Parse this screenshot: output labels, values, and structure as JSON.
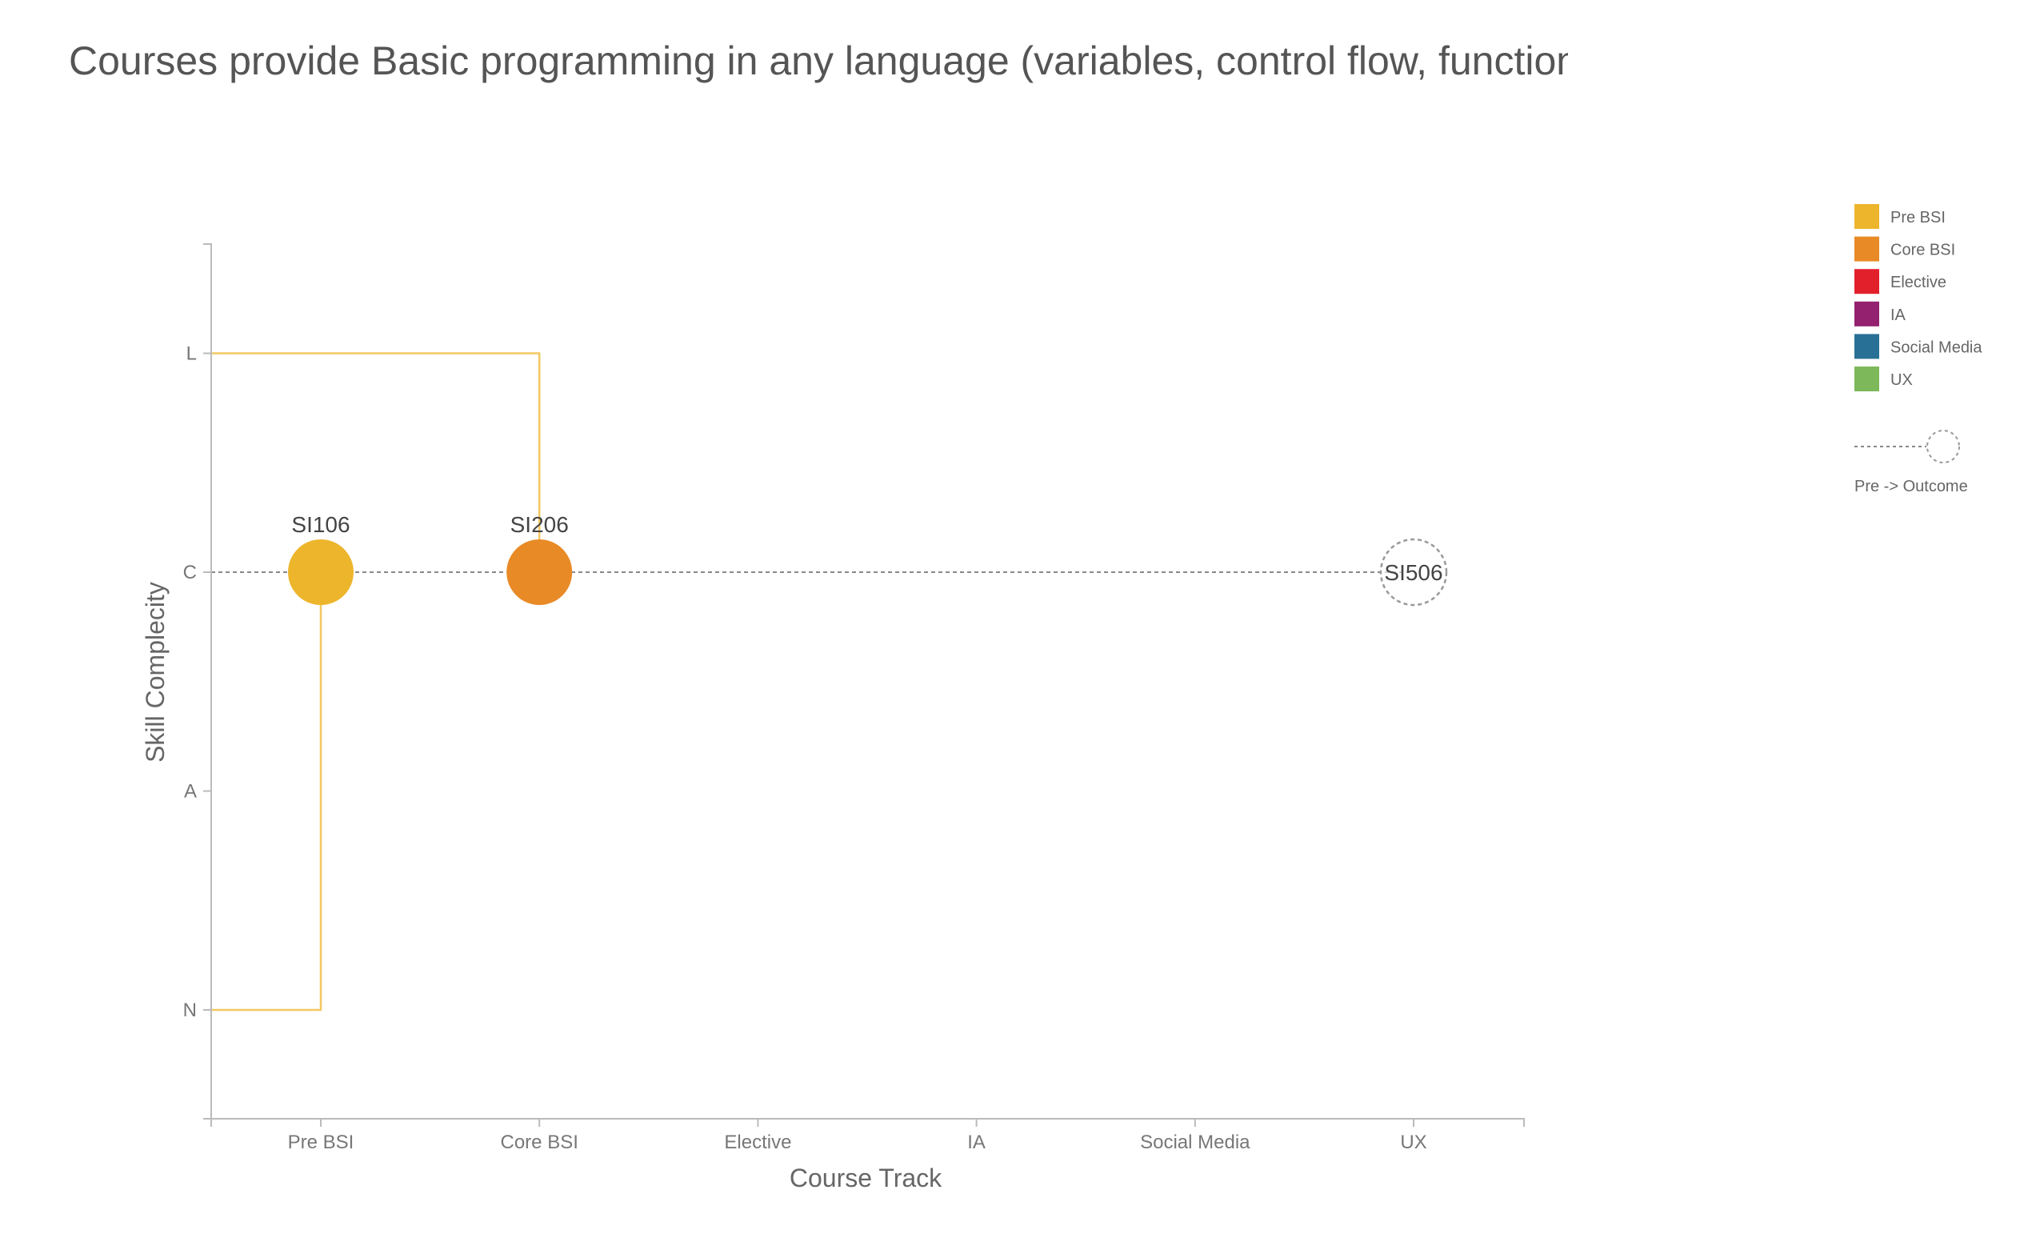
{
  "chart_data": {
    "type": "scatter",
    "title": "Courses provide Basic programming in any language (variables, control flow, functions",
    "xlabel": "Course Track",
    "ylabel": "Skill Complecity",
    "x_categories": [
      "Pre BSI",
      "Core BSI",
      "Elective",
      "IA",
      "Social Media",
      "UX"
    ],
    "y_categories": [
      "N",
      "A",
      "C",
      "L"
    ],
    "points": [
      {
        "label": "SI106",
        "x": "Pre BSI",
        "y": "C",
        "color": "#EDB52B",
        "kind": "course"
      },
      {
        "label": "SI206",
        "x": "Core BSI",
        "y": "C",
        "color": "#E88A26",
        "kind": "course"
      },
      {
        "label": "SI506",
        "x": "UX",
        "y": "C",
        "color": "#999999",
        "kind": "outcome"
      }
    ],
    "links": [
      {
        "from_y": "N",
        "to": "SI106",
        "color": "#EDB52B",
        "style": "solid"
      },
      {
        "from_y": "L",
        "to": "SI206",
        "color": "#EDB52B",
        "style": "solid"
      },
      {
        "from_y": "C",
        "to": "SI506",
        "color": "#888888",
        "style": "dotted"
      }
    ],
    "legend": {
      "position": "top-right",
      "items": [
        {
          "label": "Pre BSI",
          "color": "#EDB52B"
        },
        {
          "label": "Core BSI",
          "color": "#E88A26"
        },
        {
          "label": "Elective",
          "color": "#E2202C"
        },
        {
          "label": "IA",
          "color": "#93216F"
        },
        {
          "label": "Social Media",
          "color": "#287095"
        },
        {
          "label": "UX",
          "color": "#7DB85A"
        }
      ],
      "key_label": "Pre -> Outcome"
    }
  }
}
